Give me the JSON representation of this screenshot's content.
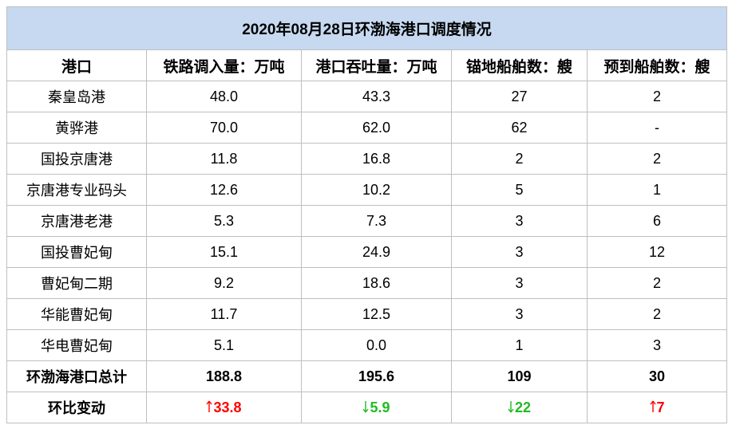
{
  "title": "2020年08月28日环渤海港口调度情况",
  "header": [
    "港口",
    "铁路调入量：万吨",
    "港口吞吐量：万吨",
    "锚地船舶数：艘",
    "预到船舶数：艘"
  ],
  "rows": [
    [
      "秦皇岛港",
      "48.0",
      "43.3",
      "27",
      "2"
    ],
    [
      "黄骅港",
      "70.0",
      "62.0",
      "62",
      "-"
    ],
    [
      "国投京唐港",
      "11.8",
      "16.8",
      "2",
      "2"
    ],
    [
      "京唐港专业码头",
      "12.6",
      "10.2",
      "5",
      "1"
    ],
    [
      "京唐港老港",
      "5.3",
      "7.3",
      "3",
      "6"
    ],
    [
      "国投曹妃甸",
      "15.1",
      "24.9",
      "3",
      "12"
    ],
    [
      "曹妃甸二期",
      "9.2",
      "18.6",
      "3",
      "2"
    ],
    [
      "华能曹妃甸",
      "11.7",
      "12.5",
      "3",
      "2"
    ],
    [
      "华电曹妃甸",
      "5.1",
      "0.0",
      "1",
      "3"
    ]
  ],
  "total": [
    "环渤海港口总计",
    "188.8",
    "195.6",
    "109",
    "30"
  ],
  "change": {
    "label": "环比变动",
    "cells": [
      {
        "dir": "up",
        "text": "33.8"
      },
      {
        "dir": "down",
        "text": "5.9"
      },
      {
        "dir": "down",
        "text": "22"
      },
      {
        "dir": "up",
        "text": "7"
      }
    ]
  }
}
